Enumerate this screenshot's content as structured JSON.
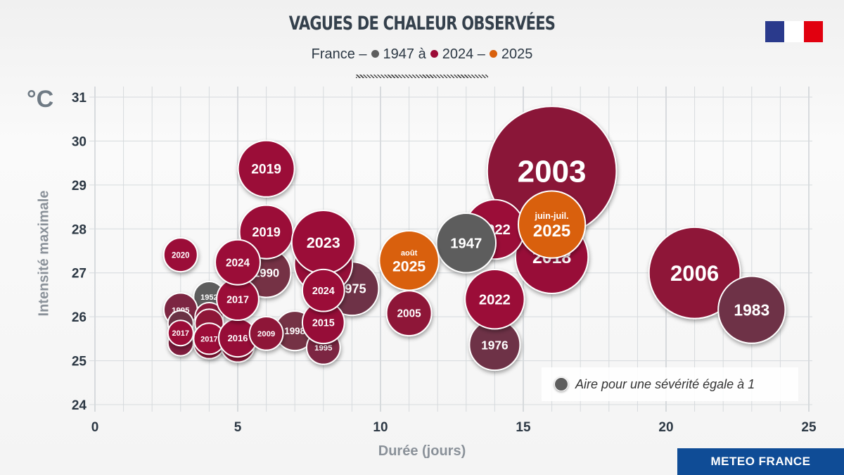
{
  "header": {
    "title": "VAGUES DE CHALEUR OBSERVÉES",
    "subtitle_prefix": "France –",
    "subtitle_part1": "1947 à",
    "subtitle_part2": "2024 –",
    "subtitle_part3": "2025",
    "colors": {
      "1947": "#5d5d5d",
      "2024": "#9b0b37",
      "2025": "#d9600c"
    }
  },
  "logo": {
    "name": "republique-francaise-logo",
    "colors": [
      "#000091",
      "#ffffff",
      "#e1000f"
    ]
  },
  "footer": {
    "label": "METEO FRANCE",
    "color": "#0f4c96"
  },
  "chart_data": {
    "type": "bubble",
    "title": "VAGUES DE CHALEUR OBSERVÉES",
    "xlabel": "Durée (jours)",
    "ylabel": "Intensité maximale",
    "yunit": "°C",
    "xlim": [
      0,
      25
    ],
    "ylim": [
      24,
      31
    ],
    "xticks": [
      0,
      5,
      10,
      15,
      20,
      25
    ],
    "yticks": [
      24,
      25,
      26,
      27,
      28,
      29,
      30,
      31
    ],
    "grid": true,
    "legend": {
      "label": "Aire pour une sévérité égale à 1",
      "severity": 1,
      "placement": "bottom-right",
      "color": "#5d5d5d"
    },
    "bubbles": [
      {
        "label": "2003",
        "x": 16,
        "y": 29.32,
        "severity": 104,
        "color": "#8a1239"
      },
      {
        "label": "2018",
        "x": 16,
        "y": 27.36,
        "severity": 33,
        "color": "#980c38"
      },
      {
        "label": "2022",
        "x": 14,
        "y": 27.99,
        "severity": 22,
        "color": "#9b0b37"
      },
      {
        "label": "juin-juil. 2025",
        "x": 16,
        "y": 28.1,
        "severity": 28,
        "color": "#d9600c"
      },
      {
        "label": "1947",
        "x": 13,
        "y": 27.68,
        "severity": 22,
        "color": "#5d5d5d"
      },
      {
        "label": "août 2025",
        "x": 11,
        "y": 27.28,
        "severity": 22,
        "color": "#d9600c"
      },
      {
        "label": "2005",
        "x": 11,
        "y": 26.08,
        "severity": 12.6,
        "color": "#8e1238"
      },
      {
        "label": "1976",
        "x": 14,
        "y": 25.36,
        "severity": 16,
        "color": "#6e3346"
      },
      {
        "label": "2022",
        "x": 14,
        "y": 26.4,
        "severity": 22,
        "color": "#9b0b37"
      },
      {
        "label": "2006",
        "x": 21,
        "y": 27.0,
        "severity": 52,
        "color": "#8e1239"
      },
      {
        "label": "1983",
        "x": 23,
        "y": 26.16,
        "severity": 28,
        "color": "#6e3346"
      },
      {
        "label": "1975",
        "x": 9,
        "y": 26.64,
        "severity": 17.8,
        "color": "#6e3346"
      },
      {
        "label": "1998",
        "x": 7,
        "y": 25.68,
        "severity": 9.7,
        "color": "#753044"
      },
      {
        "label": "1990",
        "x": 6,
        "y": 27.0,
        "severity": 15,
        "color": "#753044"
      },
      {
        "label": "2019",
        "x": 6,
        "y": 29.37,
        "severity": 19.8,
        "color": "#9b0b37"
      },
      {
        "label": "2019",
        "x": 6,
        "y": 27.93,
        "severity": 17.8,
        "color": "#9b0b37"
      },
      {
        "label": "2020",
        "x": 8,
        "y": 27.2,
        "severity": 21,
        "color": "#960c38"
      },
      {
        "label": "2023",
        "x": 8,
        "y": 27.7,
        "severity": 25,
        "color": "#9b0b37"
      },
      {
        "label": "1995",
        "x": 8,
        "y": 25.3,
        "severity": 7,
        "color": "#7c2642"
      },
      {
        "label": "2015",
        "x": 8,
        "y": 25.87,
        "severity": 11,
        "color": "#960c38"
      },
      {
        "label": "2024",
        "x": 8,
        "y": 26.6,
        "severity": 11,
        "color": "#9b0b37"
      },
      {
        "label": "2020",
        "x": 3,
        "y": 27.41,
        "severity": 7.1,
        "color": "#9b0b37"
      },
      {
        "label": "1952",
        "x": 4,
        "y": 26.45,
        "severity": 6,
        "color": "#5d5d5d"
      },
      {
        "label": "1995",
        "x": 3,
        "y": 26.16,
        "severity": 7,
        "color": "#7c2642"
      },
      {
        "label": "",
        "x": 3,
        "y": 25.85,
        "severity": 4,
        "color": "#6a3344"
      },
      {
        "label": "",
        "x": 3,
        "y": 25.4,
        "severity": 4,
        "color": "#7e1d3c"
      },
      {
        "label": "",
        "x": 4,
        "y": 26.0,
        "severity": 5,
        "color": "#8a1a3c"
      },
      {
        "label": "",
        "x": 4,
        "y": 25.85,
        "severity": 5,
        "color": "#8e1339"
      },
      {
        "label": "",
        "x": 4,
        "y": 25.4,
        "severity": 6,
        "color": "#8e1339"
      },
      {
        "label": "",
        "x": 5,
        "y": 25.35,
        "severity": 7,
        "color": "#8e1339"
      },
      {
        "label": "2017",
        "x": 3,
        "y": 25.63,
        "severity": 4,
        "color": "#9b0b37"
      },
      {
        "label": "2017",
        "x": 4,
        "y": 25.5,
        "severity": 6,
        "color": "#9b0b37"
      },
      {
        "label": "2016",
        "x": 5,
        "y": 25.52,
        "severity": 9,
        "color": "#960c38"
      },
      {
        "label": "2009",
        "x": 6,
        "y": 25.62,
        "severity": 7,
        "color": "#8e1238"
      },
      {
        "label": "2017",
        "x": 5,
        "y": 26.4,
        "severity": 11,
        "color": "#9b0b37"
      },
      {
        "label": "2024",
        "x": 5,
        "y": 27.24,
        "severity": 12.6,
        "color": "#9b0b37"
      }
    ]
  }
}
